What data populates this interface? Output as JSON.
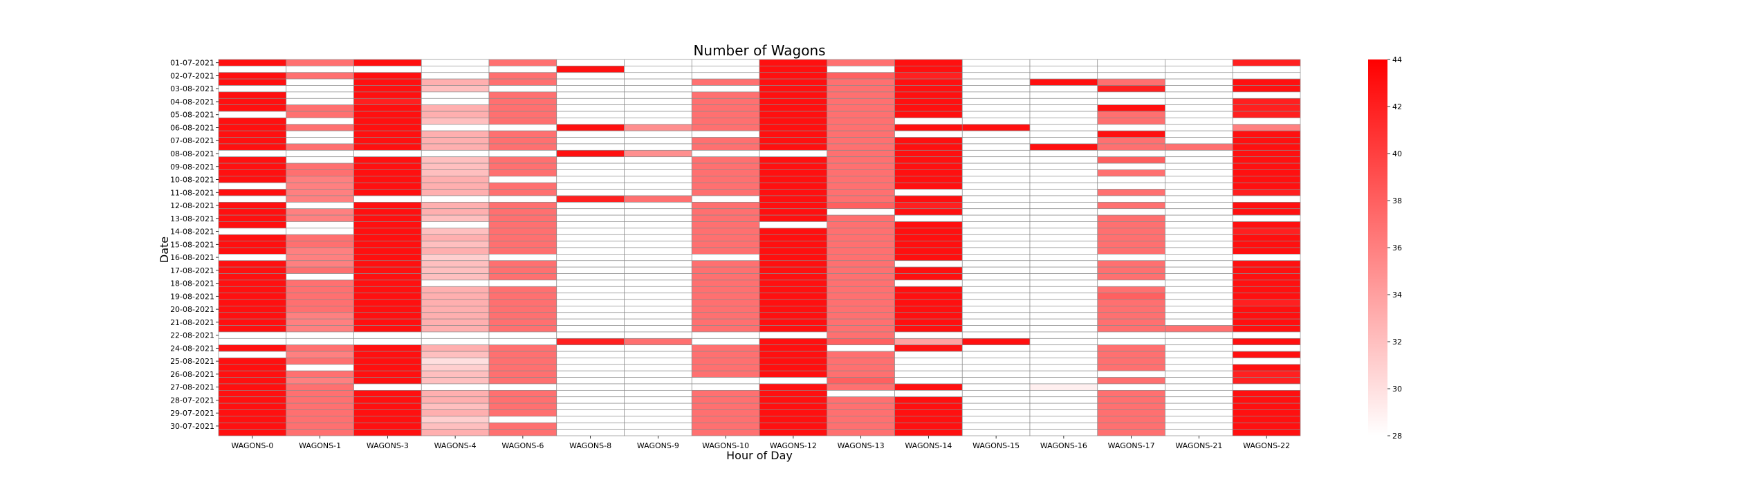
{
  "chart_data": {
    "type": "heatmap",
    "title": "Number of Wagons",
    "xlabel": "Hour of Day",
    "ylabel": "Date",
    "x_categories": [
      "WAGONS-0",
      "WAGONS-1",
      "WAGONS-3",
      "WAGONS-4",
      "WAGONS-6",
      "WAGONS-8",
      "WAGONS-9",
      "WAGONS-10",
      "WAGONS-12",
      "WAGONS-13",
      "WAGONS-14",
      "WAGONS-15",
      "WAGONS-16",
      "WAGONS-17",
      "WAGONS-21",
      "WAGONS-22"
    ],
    "y_tick_labels": [
      "01-07-2021",
      "02-07-2021",
      "03-08-2021",
      "04-08-2021",
      "05-08-2021",
      "06-08-2021",
      "07-08-2021",
      "08-08-2021",
      "09-08-2021",
      "10-08-2021",
      "11-08-2021",
      "12-08-2021",
      "13-08-2021",
      "14-08-2021",
      "15-08-2021",
      "16-08-2021",
      "17-08-2021",
      "18-08-2021",
      "19-08-2021",
      "20-08-2021",
      "21-08-2021",
      "22-08-2021",
      "24-08-2021",
      "25-08-2021",
      "26-08-2021",
      "27-08-2021",
      "28-07-2021",
      "29-07-2021",
      "30-07-2021"
    ],
    "rows_per_tick": 2,
    "colorbar": {
      "min": 28,
      "max": 44,
      "ticks": [
        28,
        30,
        32,
        34,
        36,
        38,
        40,
        42,
        44
      ],
      "colors": [
        "#ffffff",
        "#ff0000"
      ]
    },
    "values": [
      [
        43,
        37,
        43,
        null,
        37,
        null,
        null,
        null,
        43,
        37,
        43,
        null,
        null,
        null,
        null,
        42
      ],
      [
        null,
        null,
        null,
        null,
        null,
        43,
        null,
        null,
        43,
        null,
        43,
        null,
        null,
        null,
        null,
        null
      ],
      [
        43,
        37,
        43,
        null,
        37,
        null,
        null,
        null,
        43,
        38,
        42,
        null,
        null,
        null,
        null,
        null
      ],
      [
        43,
        null,
        43,
        33,
        37,
        null,
        null,
        37,
        43,
        37,
        43,
        null,
        43,
        37,
        null,
        43
      ],
      [
        null,
        null,
        43,
        32,
        null,
        null,
        null,
        null,
        43,
        37,
        43,
        null,
        null,
        42,
        null,
        43
      ],
      [
        43,
        null,
        43,
        null,
        37,
        null,
        null,
        37,
        43,
        37,
        43,
        null,
        null,
        null,
        null,
        null
      ],
      [
        43,
        null,
        42,
        null,
        37,
        null,
        null,
        37,
        43,
        37,
        43,
        null,
        null,
        null,
        null,
        42
      ],
      [
        43,
        37,
        43,
        33,
        37,
        null,
        null,
        37,
        43,
        37,
        43,
        null,
        null,
        43,
        null,
        42
      ],
      [
        null,
        37,
        43,
        33,
        37,
        null,
        null,
        37,
        43,
        37,
        43,
        null,
        null,
        37,
        null,
        42
      ],
      [
        43,
        null,
        43,
        32,
        37,
        null,
        null,
        37,
        43,
        37,
        null,
        null,
        null,
        37,
        null,
        null
      ],
      [
        43,
        37,
        43,
        null,
        null,
        43,
        35,
        37,
        43,
        37,
        43,
        43,
        null,
        null,
        null,
        36
      ],
      [
        43,
        null,
        43,
        33,
        37,
        null,
        null,
        null,
        43,
        37,
        null,
        null,
        null,
        43,
        null,
        43
      ],
      [
        43,
        null,
        43,
        33,
        37,
        null,
        null,
        37,
        43,
        37,
        43,
        null,
        null,
        37,
        null,
        43
      ],
      [
        43,
        37,
        43,
        33,
        37,
        null,
        null,
        37,
        43,
        37,
        43,
        null,
        43,
        37,
        37,
        43
      ],
      [
        null,
        null,
        null,
        null,
        null,
        43,
        35,
        null,
        null,
        37,
        43,
        null,
        null,
        null,
        null,
        43
      ],
      [
        43,
        null,
        43,
        32,
        37,
        null,
        null,
        37,
        43,
        37,
        43,
        null,
        null,
        38,
        null,
        43
      ],
      [
        43,
        37,
        43,
        32,
        37,
        null,
        null,
        37,
        43,
        37,
        43,
        null,
        null,
        null,
        null,
        43
      ],
      [
        43,
        37,
        43,
        32,
        37,
        null,
        null,
        37,
        43,
        37,
        43,
        null,
        null,
        37,
        null,
        43
      ],
      [
        43,
        36,
        43,
        33,
        null,
        null,
        null,
        37,
        43,
        37,
        43,
        null,
        null,
        null,
        null,
        43
      ],
      [
        null,
        36,
        43,
        33,
        37,
        null,
        null,
        37,
        43,
        37,
        43,
        null,
        null,
        null,
        null,
        43
      ],
      [
        43,
        36,
        43,
        33,
        37,
        null,
        null,
        37,
        43,
        37,
        null,
        null,
        null,
        37,
        null,
        42
      ],
      [
        null,
        36,
        null,
        null,
        null,
        42,
        37,
        null,
        43,
        37,
        43,
        null,
        null,
        null,
        null,
        null
      ],
      [
        43,
        null,
        43,
        33,
        37,
        null,
        null,
        37,
        43,
        38,
        42,
        null,
        null,
        37,
        null,
        43
      ],
      [
        43,
        36,
        43,
        33,
        37,
        null,
        null,
        37,
        43,
        null,
        43,
        null,
        null,
        null,
        null,
        43
      ],
      [
        43,
        36,
        43,
        32,
        37,
        null,
        null,
        37,
        43,
        37,
        null,
        null,
        null,
        37,
        null,
        null
      ],
      [
        43,
        null,
        43,
        null,
        37,
        null,
        null,
        37,
        null,
        37,
        43,
        null,
        null,
        37,
        null,
        43
      ],
      [
        null,
        null,
        43,
        32,
        37,
        null,
        null,
        37,
        43,
        37,
        43,
        null,
        null,
        37,
        null,
        42
      ],
      [
        43,
        37,
        43,
        33,
        37,
        null,
        null,
        37,
        43,
        37,
        43,
        null,
        null,
        37,
        null,
        43
      ],
      [
        43,
        37,
        43,
        32,
        37,
        null,
        null,
        37,
        43,
        37,
        43,
        null,
        null,
        37,
        null,
        43
      ],
      [
        43,
        36,
        43,
        33,
        37,
        null,
        null,
        37,
        43,
        37,
        43,
        null,
        null,
        37,
        null,
        43
      ],
      [
        null,
        36,
        43,
        31,
        null,
        null,
        null,
        null,
        43,
        37,
        43,
        null,
        null,
        null,
        null,
        null
      ],
      [
        43,
        36,
        43,
        32,
        37,
        null,
        null,
        37,
        43,
        37,
        null,
        null,
        null,
        37,
        null,
        43
      ],
      [
        43,
        37,
        43,
        32,
        37,
        null,
        null,
        37,
        43,
        37,
        43,
        null,
        null,
        37,
        null,
        43
      ],
      [
        43,
        null,
        43,
        32,
        37,
        null,
        null,
        37,
        43,
        37,
        43,
        null,
        null,
        37,
        null,
        43
      ],
      [
        43,
        37,
        43,
        null,
        null,
        null,
        null,
        37,
        43,
        37,
        null,
        null,
        null,
        null,
        null,
        43
      ],
      [
        43,
        37,
        43,
        33,
        37,
        null,
        null,
        37,
        43,
        37,
        43,
        null,
        null,
        37,
        null,
        43
      ],
      [
        43,
        37,
        43,
        33,
        37,
        null,
        null,
        37,
        43,
        37,
        43,
        null,
        null,
        38,
        null,
        43
      ],
      [
        43,
        37,
        43,
        33,
        37,
        null,
        null,
        37,
        43,
        37,
        43,
        null,
        null,
        37,
        null,
        42
      ],
      [
        43,
        37,
        43,
        33,
        37,
        null,
        null,
        37,
        43,
        37,
        43,
        null,
        null,
        37,
        null,
        43
      ],
      [
        43,
        36,
        43,
        33,
        37,
        null,
        null,
        37,
        43,
        37,
        43,
        null,
        null,
        37,
        null,
        43
      ],
      [
        43,
        36,
        43,
        33,
        37,
        null,
        null,
        37,
        43,
        37,
        43,
        null,
        null,
        37,
        null,
        43
      ],
      [
        43,
        36,
        43,
        33,
        37,
        null,
        null,
        37,
        43,
        37,
        43,
        null,
        null,
        37,
        37,
        43
      ],
      [
        null,
        null,
        null,
        null,
        null,
        null,
        null,
        null,
        null,
        37,
        null,
        null,
        null,
        null,
        null,
        null
      ],
      [
        null,
        null,
        null,
        null,
        null,
        42,
        37,
        null,
        43,
        38,
        34,
        43,
        null,
        null,
        null,
        43
      ],
      [
        43,
        37,
        43,
        33,
        37,
        null,
        null,
        37,
        43,
        null,
        43,
        null,
        null,
        37,
        null,
        null
      ],
      [
        null,
        36,
        43,
        32,
        37,
        null,
        null,
        37,
        43,
        37,
        null,
        null,
        null,
        37,
        null,
        43
      ],
      [
        43,
        37,
        43,
        30,
        37,
        null,
        null,
        37,
        43,
        37,
        null,
        null,
        null,
        37,
        null,
        null
      ],
      [
        43,
        null,
        43,
        31,
        37,
        null,
        null,
        37,
        43,
        37,
        null,
        null,
        null,
        37,
        null,
        43
      ],
      [
        43,
        37,
        43,
        32,
        37,
        null,
        null,
        37,
        43,
        37,
        null,
        null,
        null,
        null,
        null,
        42
      ],
      [
        43,
        36,
        43,
        32,
        37,
        null,
        null,
        null,
        null,
        38,
        null,
        null,
        null,
        37,
        null,
        42
      ],
      [
        43,
        37,
        null,
        null,
        null,
        null,
        null,
        null,
        43,
        37,
        43,
        null,
        29,
        null,
        null,
        null
      ],
      [
        43,
        37,
        43,
        33,
        37,
        null,
        null,
        37,
        43,
        null,
        null,
        null,
        null,
        37,
        null,
        43
      ],
      [
        43,
        37,
        43,
        33,
        37,
        null,
        null,
        37,
        43,
        37,
        43,
        null,
        null,
        37,
        null,
        43
      ],
      [
        43,
        37,
        43,
        32,
        37,
        null,
        null,
        37,
        43,
        37,
        43,
        null,
        null,
        37,
        null,
        43
      ],
      [
        43,
        37,
        43,
        33,
        37,
        null,
        null,
        37,
        43,
        37,
        43,
        null,
        null,
        37,
        null,
        43
      ],
      [
        43,
        37,
        43,
        31,
        null,
        null,
        null,
        37,
        43,
        37,
        43,
        null,
        null,
        37,
        null,
        43
      ],
      [
        43,
        37,
        43,
        32,
        37,
        null,
        null,
        37,
        43,
        37,
        43,
        null,
        null,
        37,
        null,
        43
      ],
      [
        43,
        37,
        43,
        33,
        37,
        null,
        null,
        37,
        43,
        37,
        43,
        null,
        null,
        37,
        null,
        43
      ]
    ]
  }
}
